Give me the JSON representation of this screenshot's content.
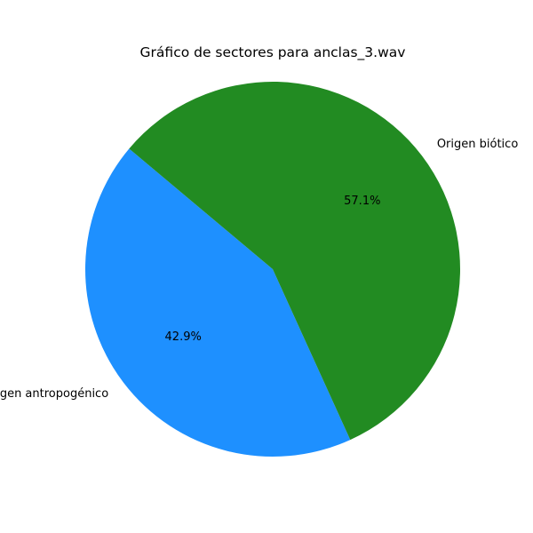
{
  "chart_data": {
    "type": "pie",
    "title": "Gráfico de sectores para anclas_3.wav",
    "slices": [
      {
        "label": "Origen antropogénico",
        "value": 42.9,
        "pct_label": "42.9%",
        "color": "#1E90FF"
      },
      {
        "label": "Origen biótico",
        "value": 57.1,
        "pct_label": "57.1%",
        "color": "#228B22"
      }
    ],
    "start_angle_deg": 140,
    "direction": "counterclockwise",
    "legend": "none"
  }
}
